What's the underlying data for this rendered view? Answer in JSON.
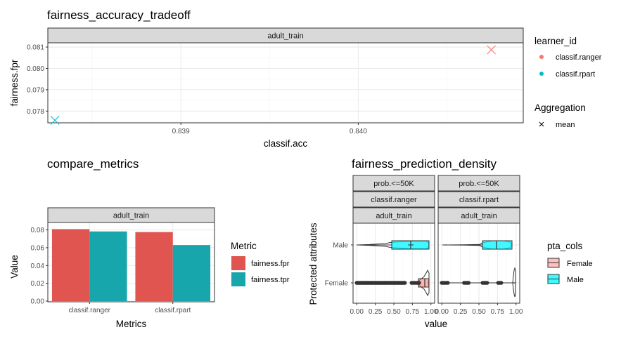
{
  "chart_data": [
    {
      "type": "scatter",
      "title": "fairness_accuracy_tradeoff",
      "facet": "adult_train",
      "xlabel": "classif.acc",
      "ylabel": "fairness.fpr",
      "xlim": [
        0.83825,
        0.84093
      ],
      "ylim": [
        0.07745,
        0.0812
      ],
      "xticks": [
        "0.839",
        "0.840"
      ],
      "yticks": [
        "0.078",
        "0.079",
        "0.080",
        "0.081"
      ],
      "series": [
        {
          "name": "classif.ranger",
          "color": "#F8766D",
          "points": [
            {
              "x": 0.84075,
              "y": 0.08087
            }
          ]
        },
        {
          "name": "classif.rpart",
          "color": "#00BFC4",
          "points": [
            {
              "x": 0.83829,
              "y": 0.07757
            }
          ]
        }
      ],
      "legend": {
        "title": "learner_id",
        "items": [
          "classif.ranger",
          "classif.rpart"
        ]
      },
      "legend2": {
        "title": "Aggregation",
        "items": [
          "mean"
        ]
      }
    },
    {
      "type": "bar",
      "title": "compare_metrics",
      "facet": "adult_train",
      "xlabel": "Metrics",
      "ylabel": "Value",
      "categories": [
        "classif.ranger",
        "classif.rpart"
      ],
      "ylim": [
        0,
        0.0844
      ],
      "yticks": [
        "0.00",
        "0.02",
        "0.04",
        "0.06",
        "0.08"
      ],
      "series": [
        {
          "name": "fairness.fpr",
          "color": "#E15550",
          "values": [
            0.0809,
            0.0776
          ]
        },
        {
          "name": "fairness.tpr",
          "color": "#17A6AC",
          "values": [
            0.0783,
            0.063
          ]
        }
      ],
      "legend": {
        "title": "Metric",
        "items": [
          "fairness.fpr",
          "fairness.tpr"
        ]
      }
    },
    {
      "type": "violin-box",
      "title": "fairness_prediction_density",
      "strip_rows": [
        [
          "prob.<=50K",
          "prob.<=50K"
        ],
        [
          "classif.ranger",
          "classif.rpart"
        ],
        [
          "adult_train",
          "adult_train"
        ]
      ],
      "xlabel": "value",
      "ylabel": "Protected attributes",
      "categories": [
        "Male",
        "Female"
      ],
      "xlim": [
        -0.05,
        1.05
      ],
      "xticks": [
        "0.00",
        "0.25",
        "0.50",
        "0.75",
        "1.00"
      ],
      "series": [
        {
          "name": "Female",
          "color": "#F8766D"
        },
        {
          "name": "Male",
          "color": "#00BFC4"
        }
      ],
      "legend": {
        "title": "pta_cols",
        "items": [
          "Female",
          "Male"
        ]
      }
    }
  ]
}
